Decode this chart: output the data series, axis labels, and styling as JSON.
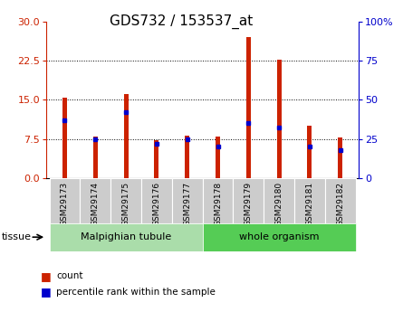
{
  "title": "GDS732 / 153537_at",
  "samples": [
    "GSM29173",
    "GSM29174",
    "GSM29175",
    "GSM29176",
    "GSM29177",
    "GSM29178",
    "GSM29179",
    "GSM29180",
    "GSM29181",
    "GSM29182"
  ],
  "counts": [
    15.5,
    8.0,
    16.2,
    7.2,
    8.2,
    8.0,
    27.0,
    22.7,
    10.0,
    7.8
  ],
  "percentile_ranks": [
    37,
    25,
    42,
    22,
    25,
    20,
    35,
    32,
    20,
    18
  ],
  "tissue_groups": [
    {
      "label": "Malpighian tubule",
      "start": 0,
      "end": 5,
      "color": "#aaddaa"
    },
    {
      "label": "whole organism",
      "start": 5,
      "end": 10,
      "color": "#55cc55"
    }
  ],
  "left_ylim": [
    0,
    30
  ],
  "right_ylim": [
    0,
    100
  ],
  "left_yticks": [
    0,
    7.5,
    15,
    22.5,
    30
  ],
  "right_yticks": [
    0,
    25,
    50,
    75,
    100
  ],
  "right_yticklabels": [
    "0",
    "25",
    "50",
    "75",
    "100%"
  ],
  "bar_color": "#cc2200",
  "dot_color": "#0000cc",
  "bg_color": "#ffffff",
  "title_fontsize": 11,
  "bar_width": 0.15,
  "grid_yticks": [
    7.5,
    15.0,
    22.5
  ],
  "label_box_color": "#cccccc",
  "tissue_label_fontsize": 8,
  "legend_fontsize": 8
}
